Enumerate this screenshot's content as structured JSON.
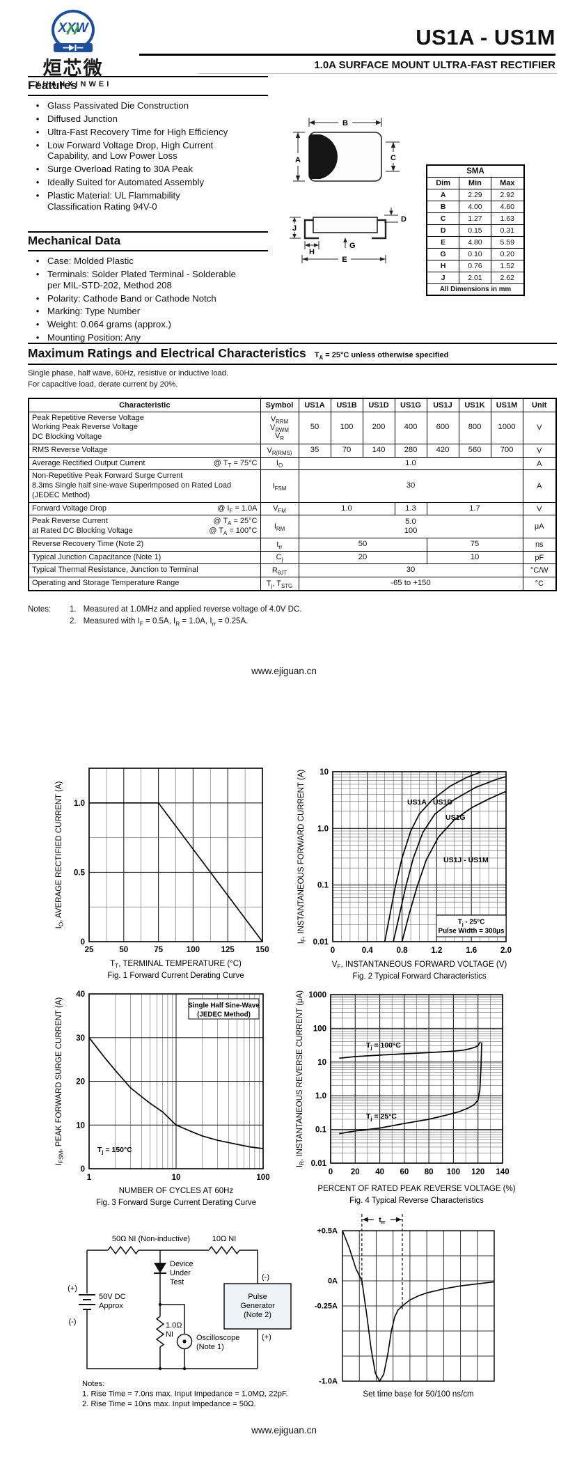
{
  "header": {
    "logo_monogram": "XXW",
    "logo_cjk": "烜芯微",
    "logo_latin": "XUANXINWEI",
    "part_range": "US1A - US1M",
    "subtitle": "1.0A SURFACE MOUNT ULTRA-FAST RECTIFIER"
  },
  "features": {
    "title": "Features",
    "items": [
      "Glass Passivated Die Construction",
      "Diffused Junction",
      "Ultra-Fast Recovery Time for High Efficiency",
      "Low Forward Voltage Drop, High Current\nCapability, and Low Power Loss",
      "Surge Overload Rating to 30A Peak",
      "Ideally Suited for Automated Assembly",
      "Plastic Material: UL Flammability\nClassification Rating 94V-0"
    ]
  },
  "mechanical": {
    "title": "Mechanical Data",
    "items": [
      "Case: Molded Plastic",
      "Terminals: Solder Plated Terminal - Solderable\nper MIL-STD-202, Method 208",
      "Polarity: Cathode Band or Cathode Notch",
      "Marking: Type Number",
      "Weight: 0.064 grams (approx.)",
      "Mounting Position: Any"
    ]
  },
  "package": {
    "name": "SMA",
    "headers": [
      "Dim",
      "Min",
      "Max"
    ],
    "rows": [
      [
        "A",
        "2.29",
        "2.92"
      ],
      [
        "B",
        "4.00",
        "4.60"
      ],
      [
        "C",
        "1.27",
        "1.63"
      ],
      [
        "D",
        "0.15",
        "0.31"
      ],
      [
        "E",
        "4.80",
        "5.59"
      ],
      [
        "G",
        "0.10",
        "0.20"
      ],
      [
        "H",
        "0.76",
        "1.52"
      ],
      [
        "J",
        "2.01",
        "2.62"
      ]
    ],
    "footer": "All Dimensions in mm",
    "dims": {
      "A": "A",
      "B": "B",
      "C": "C",
      "D": "D",
      "E": "E",
      "G": "G",
      "H": "H",
      "J": "J"
    }
  },
  "ratings": {
    "title": "Maximum Ratings and Electrical Characteristics",
    "title_note": "T~A~ = 25°C unless otherwise specified",
    "intro": [
      "Single phase, half wave, 60Hz, resistive or inductive load.",
      "For capacitive load, derate current by 20%."
    ],
    "col_headers": [
      "Characteristic",
      "Symbol",
      "US1A",
      "US1B",
      "US1D",
      "US1G",
      "US1J",
      "US1K",
      "US1M",
      "Unit"
    ],
    "rows": [
      {
        "lines": [
          {
            "l": "Peak Repetitive Reverse Voltage"
          },
          {
            "l": "Working Peak Reverse Voltage"
          },
          {
            "l": "DC Blocking Voltage"
          }
        ],
        "sym": [
          "V~RRM~",
          "V~RWM~",
          "V~R~"
        ],
        "vals": [
          {
            "t": "50"
          },
          {
            "t": "100"
          },
          {
            "t": "200"
          },
          {
            "t": "400"
          },
          {
            "t": "600"
          },
          {
            "t": "800"
          },
          {
            "t": "1000"
          }
        ],
        "unit": "V"
      },
      {
        "lines": [
          {
            "l": "RMS Reverse Voltage"
          }
        ],
        "sym": [
          "V~R(RMS)~"
        ],
        "vals": [
          {
            "t": "35"
          },
          {
            "t": "70"
          },
          {
            "t": "140"
          },
          {
            "t": "280"
          },
          {
            "t": "420"
          },
          {
            "t": "560"
          },
          {
            "t": "700"
          }
        ],
        "unit": "V"
      },
      {
        "lines": [
          {
            "l": "Average Rectified Output Current",
            "r": "@ T~T~ = 75°C"
          }
        ],
        "sym": [
          "I~O~"
        ],
        "vals": [
          {
            "t": "1.0",
            "s": 7
          }
        ],
        "unit": "A"
      },
      {
        "lines": [
          {
            "l": "Non-Repetitive Peak Forward Surge Current"
          },
          {
            "l": "8.3ms Single half sine-wave Superimposed on Rated Load"
          },
          {
            "l": "(JEDEC Method)"
          }
        ],
        "sym": [
          "I~FSM~"
        ],
        "vals": [
          {
            "t": "30",
            "s": 7
          }
        ],
        "unit": "A"
      },
      {
        "lines": [
          {
            "l": "Forward Voltage Drop",
            "r": "@ I~F~ = 1.0A"
          }
        ],
        "sym": [
          "V~FM~"
        ],
        "vals": [
          {
            "t": "1.0",
            "s": 3
          },
          {
            "t": "1.3"
          },
          {
            "t": "1.7",
            "s": 3
          }
        ],
        "unit": "V"
      },
      {
        "lines": [
          {
            "l": "Peak Reverse Current",
            "r": "@ T~A~ =  25°C"
          },
          {
            "l": "at Rated DC Blocking Voltage",
            "r": "@ T~A~ = 100°C"
          }
        ],
        "sym": [
          "I~RM~"
        ],
        "vals": [
          {
            "t": "5.0\n100",
            "s": 7
          }
        ],
        "unit": "μA"
      },
      {
        "lines": [
          {
            "l": "Reverse Recovery Time (Note 2)"
          }
        ],
        "sym": [
          "t~rr~"
        ],
        "vals": [
          {
            "t": "50",
            "s": 4
          },
          {
            "t": "75",
            "s": 3
          }
        ],
        "unit": "ns"
      },
      {
        "lines": [
          {
            "l": "Typical Junction Capacitance (Note 1)"
          }
        ],
        "sym": [
          "C~j~"
        ],
        "vals": [
          {
            "t": "20",
            "s": 4
          },
          {
            "t": "10",
            "s": 3
          }
        ],
        "unit": "pF"
      },
      {
        "lines": [
          {
            "l": "Typical Thermal Resistance, Junction to Terminal"
          }
        ],
        "sym": [
          "R~θJT~"
        ],
        "vals": [
          {
            "t": "30",
            "s": 7
          }
        ],
        "unit": "°C/W"
      },
      {
        "lines": [
          {
            "l": "Operating and Storage Temperature Range"
          }
        ],
        "sym": [
          "T~j~, T~STG~"
        ],
        "vals": [
          {
            "t": "-65 to +150",
            "s": 7
          }
        ],
        "unit": "°C"
      }
    ],
    "notes_label": "Notes:",
    "notes": [
      {
        "n": "1.",
        "t": "Measured at 1.0MHz and applied reverse voltage of 4.0V DC."
      },
      {
        "n": "2.",
        "t": "Measured with I~F~ = 0.5A, I~R~ = 1.0A, I~rr~ = 0.25A."
      }
    ]
  },
  "mid_link": "www.ejiguan.cn",
  "bottom_link": "www.ejiguan.cn",
  "chart_data": [
    {
      "id": "fig1",
      "type": "line",
      "caption": "Fig. 1  Forward Current Derating Curve",
      "xlabel": "T~T~, TERMINAL TEMPERATURE (°C)",
      "ylabel": "I~O~, AVERAGE RECTIFIED CURRENT (A)",
      "xscale": "linear",
      "yscale": "linear",
      "xlim": [
        25,
        150
      ],
      "ylim": [
        0,
        1.25
      ],
      "xgrid": 12.5,
      "ygrid": 0.25,
      "xticks": [
        25,
        50,
        75,
        100,
        125,
        150
      ],
      "xtick_labels": [
        "25",
        "50",
        "75",
        "100",
        "125",
        "150"
      ],
      "yticks": [
        0,
        0.5,
        1.0
      ],
      "ytick_labels": [
        "0",
        "0.5",
        "1.0"
      ],
      "series": [
        {
          "name": "derating",
          "points": [
            [
              25,
              1.0
            ],
            [
              75,
              1.0
            ],
            [
              150,
              0
            ]
          ]
        }
      ]
    },
    {
      "id": "fig2",
      "type": "line",
      "caption": "Fig. 2  Typical Forward Characteristics",
      "xlabel": "V~F~, INSTANTANEOUS FORWARD VOLTAGE (V)",
      "ylabel": "I~F~, INSTANTANEOUS FORWARD CURRENT (A)",
      "xscale": "linear",
      "yscale": "log",
      "xlim": [
        0,
        2.0
      ],
      "ylim": [
        0.01,
        10
      ],
      "xgrid": 0.1,
      "xticks": [
        0,
        0.4,
        0.8,
        1.2,
        1.6,
        2.0
      ],
      "xtick_labels": [
        "0",
        "0.4",
        "0.8",
        "1.2",
        "1.6",
        "2.0"
      ],
      "yticks": [
        0.01,
        0.1,
        1,
        10
      ],
      "ytick_labels": [
        "0.01",
        "0.1",
        "1.0",
        "10"
      ],
      "note_box": [
        "T~j~ - 25°C",
        "Pulse Width = 300μs"
      ],
      "series": [
        {
          "name": "US1A - US1D",
          "points": [
            [
              0.6,
              0.01
            ],
            [
              0.66,
              0.03
            ],
            [
              0.72,
              0.09
            ],
            [
              0.8,
              0.3
            ],
            [
              0.9,
              0.9
            ],
            [
              1.0,
              1.8
            ],
            [
              1.15,
              3.2
            ],
            [
              1.35,
              5.5
            ],
            [
              1.55,
              8.0
            ],
            [
              1.72,
              10
            ]
          ]
        },
        {
          "name": "US1G",
          "points": [
            [
              0.7,
              0.01
            ],
            [
              0.77,
              0.03
            ],
            [
              0.84,
              0.09
            ],
            [
              0.93,
              0.3
            ],
            [
              1.04,
              0.85
            ],
            [
              1.18,
              1.8
            ],
            [
              1.4,
              3.2
            ],
            [
              1.65,
              5.3
            ],
            [
              1.9,
              7.4
            ],
            [
              2.0,
              8.2
            ]
          ]
        },
        {
          "name": "US1J - US1M",
          "points": [
            [
              0.8,
              0.01
            ],
            [
              0.88,
              0.03
            ],
            [
              0.97,
              0.09
            ],
            [
              1.08,
              0.28
            ],
            [
              1.22,
              0.7
            ],
            [
              1.4,
              1.4
            ],
            [
              1.6,
              2.3
            ],
            [
              1.8,
              3.3
            ],
            [
              2.0,
              4.5
            ]
          ]
        }
      ]
    },
    {
      "id": "fig3",
      "type": "line",
      "caption": "Fig. 3  Forward Surge Current Derating Curve",
      "xlabel": "NUMBER OF CYCLES AT 60Hz",
      "ylabel": "I~FSM~, PEAK FORWARD SURGE CURRENT (A)",
      "xscale": "log",
      "yscale": "linear",
      "xlim": [
        1,
        100
      ],
      "ylim": [
        0,
        40
      ],
      "ygrid": 10,
      "xticks": [
        1,
        10,
        100
      ],
      "xtick_labels": [
        "1",
        "10",
        "100"
      ],
      "yticks": [
        0,
        10,
        20,
        30,
        40
      ],
      "ytick_labels": [
        "0",
        "10",
        "20",
        "30",
        "40"
      ],
      "note_box": [
        "Single Half Sine-Wave",
        "(JEDEC Method)"
      ],
      "annotations": [
        "T~j~ = 150°C"
      ],
      "series": [
        {
          "name": "surge",
          "points": [
            [
              1,
              30
            ],
            [
              1.5,
              25.5
            ],
            [
              2,
              22.5
            ],
            [
              3,
              18.5
            ],
            [
              4,
              16.5
            ],
            [
              5,
              15
            ],
            [
              7,
              13
            ],
            [
              10,
              10
            ],
            [
              15,
              8.5
            ],
            [
              20,
              7.5
            ],
            [
              30,
              6.5
            ],
            [
              50,
              5.6
            ],
            [
              70,
              5.0
            ],
            [
              100,
              4.6
            ]
          ]
        }
      ]
    },
    {
      "id": "fig4",
      "type": "line",
      "caption": "Fig. 4  Typical Reverse Characteristics",
      "xlabel": "PERCENT OF RATED PEAK REVERSE VOLTAGE (%)",
      "ylabel": "I~R~, INSTANTANEOUS REVERSE CURRENT (μA)",
      "xscale": "linear",
      "yscale": "log",
      "xlim": [
        0,
        140
      ],
      "ylim": [
        0.01,
        1000
      ],
      "xgrid": 10,
      "xticks": [
        0,
        20,
        40,
        60,
        80,
        100,
        120,
        140
      ],
      "xtick_labels": [
        "0",
        "20",
        "40",
        "60",
        "80",
        "100",
        "120",
        "140"
      ],
      "yticks": [
        0.01,
        0.1,
        1,
        10,
        100,
        1000
      ],
      "ytick_labels": [
        "0.01",
        "0.1",
        "1.0",
        "10",
        "100",
        "1000"
      ],
      "series": [
        {
          "name": "T~j~ = 100°C",
          "points": [
            [
              7,
              13
            ],
            [
              20,
              14.5
            ],
            [
              40,
              16
            ],
            [
              60,
              17.5
            ],
            [
              80,
              19
            ],
            [
              100,
              21
            ],
            [
              108,
              22.5
            ],
            [
              114,
              25
            ],
            [
              118,
              28
            ],
            [
              120,
              31
            ],
            [
              122,
              40
            ]
          ]
        },
        {
          "name": "T~j~ = 25°C",
          "points": [
            [
              7,
              0.075
            ],
            [
              20,
              0.09
            ],
            [
              40,
              0.11
            ],
            [
              60,
              0.15
            ],
            [
              80,
              0.2
            ],
            [
              95,
              0.27
            ],
            [
              105,
              0.34
            ],
            [
              112,
              0.43
            ],
            [
              117,
              0.55
            ],
            [
              120,
              0.75
            ],
            [
              121.5,
              1.5
            ],
            [
              122.5,
              8
            ],
            [
              123,
              38
            ]
          ]
        }
      ]
    },
    {
      "id": "waveform",
      "type": "line",
      "caption": "Set time base for 50/100 ns/cm",
      "annotation": "t~rr~",
      "grid": {
        "cols": 9,
        "rows": 6,
        "ymin": -1.0,
        "ymax": 0.5
      },
      "dashed_x": [
        1.15,
        3.55
      ],
      "y_axis_labels": [
        {
          "t": "+0.5A",
          "v": 0.5
        },
        {
          "t": "0A",
          "v": 0
        },
        {
          "t": "-0.25A",
          "v": -0.25
        },
        {
          "t": "-1.0A",
          "v": -1.0
        }
      ],
      "series": [
        {
          "name": "recovery current",
          "points": [
            [
              0,
              0.5
            ],
            [
              0.4,
              0.33
            ],
            [
              0.8,
              0.12
            ],
            [
              1.15,
              0
            ],
            [
              1.45,
              -0.35
            ],
            [
              1.7,
              -0.68
            ],
            [
              1.95,
              -0.92
            ],
            [
              2.2,
              -1.0
            ],
            [
              2.45,
              -0.93
            ],
            [
              2.7,
              -0.72
            ],
            [
              2.9,
              -0.5
            ],
            [
              3.1,
              -0.36
            ],
            [
              3.3,
              -0.29
            ],
            [
              3.55,
              -0.25
            ],
            [
              4.0,
              -0.19
            ],
            [
              4.5,
              -0.15
            ],
            [
              5.0,
              -0.12
            ],
            [
              6.0,
              -0.08
            ],
            [
              7.0,
              -0.05
            ],
            [
              8.0,
              -0.03
            ],
            [
              9.0,
              -0.01
            ]
          ]
        }
      ]
    }
  ],
  "circuit": {
    "r_series": "50Ω NI (Non-inductive)",
    "r_load": "10Ω NI",
    "plus_left": "(+)",
    "minus_left": "(-)",
    "battery": "50V DC\nApprox",
    "dut": "Device\nUnder\nTest",
    "r_sense": "1.0Ω\nNI",
    "scope": "Oscilloscope\n(Note 1)",
    "pg_minus": "(-)",
    "pg_plus": "(+)",
    "pulse_gen": "Pulse\nGenerator\n(Note 2)",
    "notes": [
      "Notes:",
      "1. Rise Time = 7.0ns max. Input Impedance = 1.0MΩ, 22pF.",
      "2. Rise Time = 10ns max. Input Impedance = 50Ω."
    ]
  }
}
